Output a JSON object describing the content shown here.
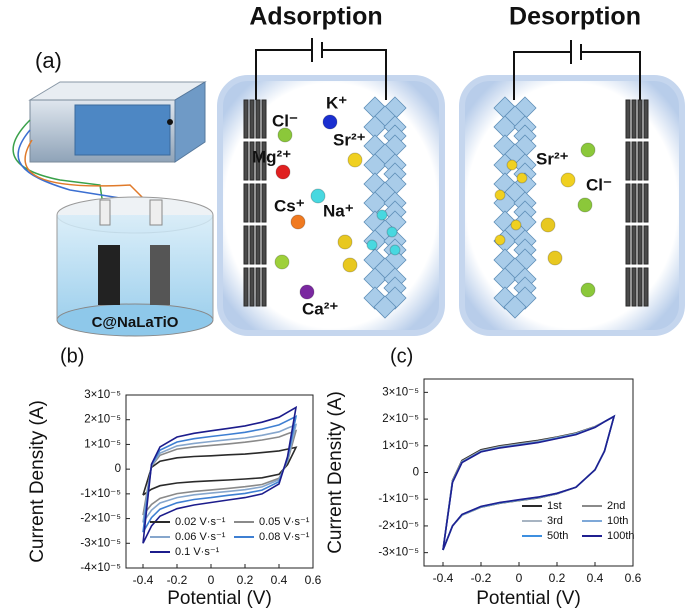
{
  "schematic": {
    "panel_label": "(a)",
    "adsorption_title": "Adsorption",
    "desorption_title": "Desorption",
    "electrode_label": "C@NaLaTiO",
    "adsorption_ions": [
      "Cl⁻",
      "K⁺",
      "Sr²⁺",
      "Mg²⁺",
      "Cs⁺",
      "Na⁺",
      "Ca²⁺"
    ],
    "desorption_ions": [
      "Sr²⁺",
      "Cl⁻"
    ]
  },
  "chart_data": [
    {
      "type": "line",
      "panel_label": "(b)",
      "x_label": "Potential (V)",
      "y_label": "Current Density (A)",
      "x": [
        -0.4,
        -0.35,
        -0.3,
        -0.2,
        -0.1,
        0,
        0.1,
        0.2,
        0.3,
        0.4,
        0.45,
        0.5,
        0.45,
        0.4,
        0.3,
        0.2,
        0.1,
        0,
        -0.1,
        -0.2,
        -0.3,
        -0.35,
        -0.4
      ],
      "xlim": [
        -0.5,
        0.6
      ],
      "xticks": [
        -0.4,
        -0.2,
        0.0,
        0.2,
        0.4,
        0.6
      ],
      "ylim": [
        -4e-05,
        3e-05
      ],
      "yticks": [
        {
          "value": 3e-05,
          "label": "3×10⁻⁵"
        },
        {
          "value": 2e-05,
          "label": "2×10⁻⁵"
        },
        {
          "value": 1e-05,
          "label": "1×10⁻⁵"
        },
        0,
        {
          "value": -1e-05,
          "label": "-1×10⁻⁵"
        },
        {
          "value": -2e-05,
          "label": "-2×10⁻⁵"
        },
        {
          "value": -3e-05,
          "label": "-3×10⁻⁵"
        },
        {
          "value": -4e-05,
          "label": "-4×10⁻⁵"
        }
      ],
      "legend": "lower right",
      "series": [
        {
          "name": "0.02 V·s⁻¹",
          "color": "#2a2a2a",
          "values": [
            -1.05e-05,
            7e-07,
            3.2e-06,
            4.6e-06,
            5.1e-06,
            5.4e-06,
            5.8e-06,
            6.1e-06,
            6.7e-06,
            7.4e-06,
            8.1e-06,
            8.8e-06,
            1.8e-06,
            -2.1e-06,
            -3.5e-06,
            -4e-06,
            -4.4e-06,
            -4.7e-06,
            -5.1e-06,
            -5.6e-06,
            -6.7e-06,
            -8.1e-06,
            -1.05e-05
          ]
        },
        {
          "name": "0.05 V·s⁻¹",
          "color": "#8a8a8a",
          "values": [
            -1.86e-05,
            1.2e-06,
            5.6e-06,
            8.1e-06,
            9e-06,
            9.6e-06,
            1.02e-05,
            1.09e-05,
            1.18e-05,
            1.3e-05,
            1.43e-05,
            1.55e-05,
            3.1e-06,
            -3.7e-06,
            -6.2e-06,
            -7.1e-06,
            -7.8e-06,
            -8.4e-06,
            -9e-06,
            -9.9e-06,
            -1.18e-05,
            -1.43e-05,
            -1.86e-05
          ]
        },
        {
          "name": "0.06 V·s⁻¹",
          "color": "#86a6cc",
          "values": [
            -2.16e-05,
            1.4e-06,
            6.5e-06,
            9.4e-06,
            1.04e-05,
            1.12e-05,
            1.19e-05,
            1.26e-05,
            1.37e-05,
            1.51e-05,
            1.66e-05,
            1.8e-05,
            3.6e-06,
            -4.3e-06,
            -7.2e-06,
            -8.3e-06,
            -9e-06,
            -9.7e-06,
            -1.04e-05,
            -1.15e-05,
            -1.37e-05,
            -1.66e-05,
            -2.16e-05
          ]
        },
        {
          "name": "0.08 V·s⁻¹",
          "color": "#3e7fd2",
          "values": [
            -2.55e-05,
            1.7e-06,
            7.7e-06,
            1.1e-05,
            1.23e-05,
            1.32e-05,
            1.4e-05,
            1.49e-05,
            1.62e-05,
            1.79e-05,
            1.96e-05,
            2.13e-05,
            4.3e-06,
            -5.1e-06,
            -8.5e-06,
            -9.8e-06,
            -1.06e-05,
            -1.15e-05,
            -1.23e-05,
            -1.36e-05,
            -1.62e-05,
            -1.96e-05,
            -2.55e-05
          ]
        },
        {
          "name": "0.1 V·s⁻¹",
          "color": "#1c1c8c",
          "values": [
            -3e-05,
            2e-06,
            9e-06,
            1.3e-05,
            1.45e-05,
            1.55e-05,
            1.65e-05,
            1.75e-05,
            1.9e-05,
            2.1e-05,
            2.3e-05,
            2.5e-05,
            5e-06,
            -6e-06,
            -1e-05,
            -1.15e-05,
            -1.25e-05,
            -1.35e-05,
            -1.45e-05,
            -1.6e-05,
            -1.9e-05,
            -2.3e-05,
            -3e-05
          ]
        }
      ]
    },
    {
      "type": "line",
      "panel_label": "(c)",
      "x_label": "Potential (V)",
      "y_label": "Current Density (A)",
      "x": [
        -0.4,
        -0.35,
        -0.3,
        -0.2,
        -0.1,
        0,
        0.1,
        0.2,
        0.3,
        0.4,
        0.45,
        0.5,
        0.45,
        0.4,
        0.3,
        0.2,
        0.1,
        0,
        -0.1,
        -0.2,
        -0.3,
        -0.35,
        -0.4
      ],
      "xlim": [
        -0.5,
        0.6
      ],
      "xticks": [
        -0.4,
        -0.2,
        0.0,
        0.2,
        0.4,
        0.6
      ],
      "ylim": [
        -3.5e-05,
        3.5e-05
      ],
      "yticks": [
        {
          "value": 3e-05,
          "label": "3×10⁻⁵"
        },
        {
          "value": 2e-05,
          "label": "2×10⁻⁵"
        },
        {
          "value": 1e-05,
          "label": "1×10⁻⁵"
        },
        0,
        {
          "value": -1e-05,
          "label": "-1×10⁻⁵"
        },
        {
          "value": -2e-05,
          "label": "-2×10⁻⁵"
        },
        {
          "value": -3e-05,
          "label": "-3×10⁻⁵"
        }
      ],
      "legend": "lower right",
      "series": [
        {
          "name": "1st",
          "color": "#2a2a2a",
          "values": [
            -2.9e-05,
            -3e-06,
            4.5e-06,
            8.5e-06,
            1e-05,
            1.1e-05,
            1.2e-05,
            1.33e-05,
            1.48e-05,
            1.72e-05,
            1.9e-05,
            2.1e-05,
            8e-06,
            1e-06,
            -5.5e-06,
            -8e-06,
            -9.5e-06,
            -1.05e-05,
            -1.15e-05,
            -1.3e-05,
            -1.6e-05,
            -2e-05,
            -2.9e-05
          ]
        },
        {
          "name": "2nd",
          "color": "#8a8a8a",
          "values": [
            -2.9e-05,
            -3.2e-06,
            4.2e-06,
            8.2e-06,
            9.7e-06,
            1.07e-05,
            1.17e-05,
            1.31e-05,
            1.46e-05,
            1.71e-05,
            1.9e-05,
            2.1e-05,
            8e-06,
            1e-06,
            -5.5e-06,
            -8e-06,
            -9.4e-06,
            -1.04e-05,
            -1.14e-05,
            -1.29e-05,
            -1.59e-05,
            -2e-05,
            -2.9e-05
          ]
        },
        {
          "name": "3rd",
          "color": "#a7b4c2",
          "values": [
            -2.9e-05,
            -3.4e-06,
            4e-06,
            8e-06,
            9.5e-06,
            1.05e-05,
            1.15e-05,
            1.3e-05,
            1.45e-05,
            1.7e-05,
            1.9e-05,
            2.1e-05,
            8e-06,
            1e-06,
            -5.5e-06,
            -7.9e-06,
            -9.4e-06,
            -1.04e-05,
            -1.14e-05,
            -1.29e-05,
            -1.59e-05,
            -2e-05,
            -2.9e-05
          ]
        },
        {
          "name": "10th",
          "color": "#7ea8d8",
          "values": [
            -2.9e-05,
            -3.5e-06,
            3.9e-06,
            7.9e-06,
            9.4e-06,
            1.04e-05,
            1.14e-05,
            1.29e-05,
            1.44e-05,
            1.7e-05,
            1.9e-05,
            2.1e-05,
            8e-06,
            1e-06,
            -5.5e-06,
            -7.9e-06,
            -9.3e-06,
            -1.03e-05,
            -1.13e-05,
            -1.28e-05,
            -1.58e-05,
            -2e-05,
            -2.9e-05
          ]
        },
        {
          "name": "50th",
          "color": "#3d8fe0",
          "values": [
            -2.9e-05,
            -3.6e-06,
            3.8e-06,
            7.8e-06,
            9.3e-06,
            1.03e-05,
            1.13e-05,
            1.28e-05,
            1.43e-05,
            1.69e-05,
            1.9e-05,
            2.1e-05,
            8e-06,
            1e-06,
            -5.5e-06,
            -7.8e-06,
            -9.3e-06,
            -1.03e-05,
            -1.13e-05,
            -1.28e-05,
            -1.58e-05,
            -2e-05,
            -2.9e-05
          ]
        },
        {
          "name": "100th",
          "color": "#1f1f90",
          "values": [
            -2.9e-05,
            -3.7e-06,
            3.7e-06,
            7.7e-06,
            9.2e-06,
            1.02e-05,
            1.12e-05,
            1.27e-05,
            1.42e-05,
            1.69e-05,
            1.9e-05,
            2.1e-05,
            8e-06,
            1e-06,
            -5.5e-06,
            -7.8e-06,
            -9.2e-06,
            -1.02e-05,
            -1.12e-05,
            -1.27e-05,
            -1.57e-05,
            -2e-05,
            -2.9e-05
          ]
        }
      ]
    }
  ]
}
